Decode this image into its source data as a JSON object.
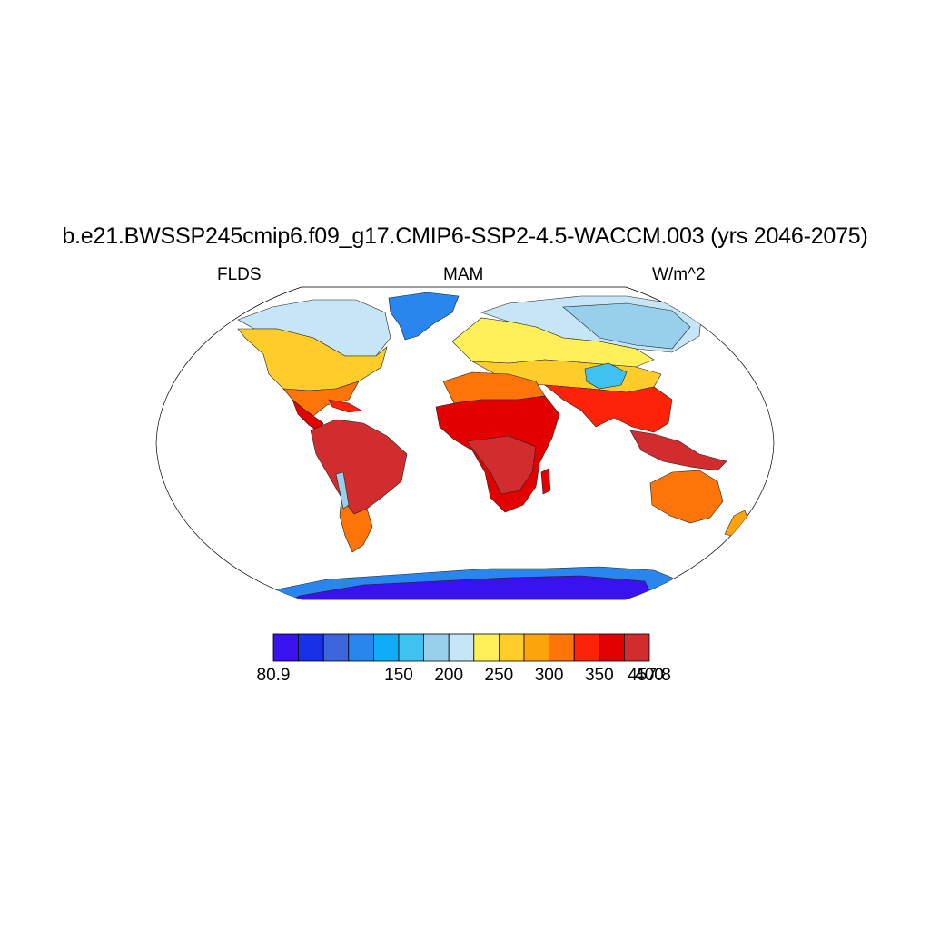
{
  "title": "b.e21.BWSSP245cmip6.f09_g17.CMIP6-SSP2-4.5-WACCM.003 (yrs 2046-2075)",
  "left_label": "FLDS",
  "center_label": "MAM",
  "right_label": "W/m^2",
  "colorbar": {
    "colors": [
      "#3a12f0",
      "#1730ea",
      "#3d65dc",
      "#2a86ef",
      "#10acf8",
      "#3fc2f2",
      "#98cfeb",
      "#c6e5f6",
      "#fff05a",
      "#fecd2a",
      "#fda30c",
      "#fd7408",
      "#fe2308",
      "#e20000",
      "#d12c2e"
    ],
    "tick_labels": [
      {
        "text": "80.9",
        "boundary": 0
      },
      {
        "text": "150",
        "boundary": 2
      },
      {
        "text": "200",
        "boundary": 3
      },
      {
        "text": "250",
        "boundary": 4
      },
      {
        "text": "300",
        "boundary": 5
      },
      {
        "text": "350",
        "boundary": 6
      },
      {
        "text": "400",
        "boundary": 7
      },
      {
        "text": "457.8",
        "boundary": 8
      }
    ]
  }
}
